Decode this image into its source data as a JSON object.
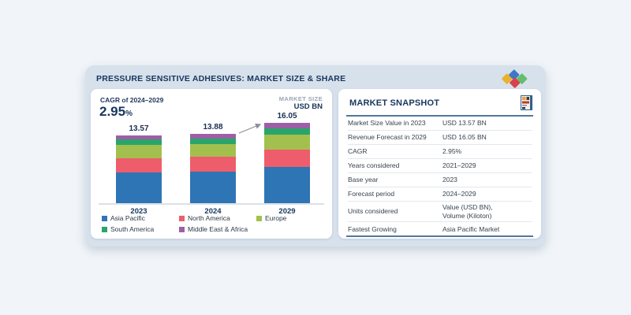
{
  "page": {
    "title": "PRESSURE SENSITIVE ADHESIVES: MARKET SIZE & SHARE"
  },
  "logo": {
    "name": "brand-logo-diamonds",
    "colors": {
      "yellow": "#eab12c",
      "blue": "#3b79c4",
      "red": "#d8414f",
      "green": "#66bd6d"
    }
  },
  "chart_panel": {
    "cagr_label": "CAGR of 2024–2029",
    "cagr_value": "2.95",
    "cagr_unit": "%",
    "market_size_label": "MARKET SIZE",
    "unit_label": "USD BN"
  },
  "chart_data": {
    "type": "bar",
    "stacked": true,
    "title": "PRESSURE SENSITIVE ADHESIVES: MARKET SIZE & SHARE",
    "ylabel": "USD BN",
    "categories": [
      "2023",
      "2024",
      "2029"
    ],
    "totals": [
      13.57,
      13.88,
      16.05
    ],
    "series": [
      {
        "name": "Asia Pacific",
        "color": "#2e75b6",
        "values": [
          6.11,
          6.25,
          7.22
        ]
      },
      {
        "name": "North America",
        "color": "#ee5d6c",
        "values": [
          2.92,
          2.98,
          3.45
        ]
      },
      {
        "name": "Europe",
        "color": "#a3c04e",
        "values": [
          2.58,
          2.64,
          3.05
        ]
      },
      {
        "name": "South America",
        "color": "#2aa56a",
        "values": [
          1.09,
          1.11,
          1.29
        ]
      },
      {
        "name": "Middle East & Africa",
        "color": "#9d60a6",
        "values": [
          0.87,
          0.9,
          1.04
        ]
      }
    ],
    "value_labels": [
      "13.57",
      "13.88",
      "16.05"
    ],
    "annotations": [
      "growth arrow from 2024 bar to 2029 bar"
    ],
    "y_axis_visible": false,
    "grid": false,
    "legend_position": "bottom"
  },
  "snapshot": {
    "title": "MARKET SNAPSHOT",
    "icon": "report-document-icon",
    "rows": [
      {
        "label": "Market Size Value in 2023",
        "value": "USD 13.57 BN"
      },
      {
        "label": "Revenue Forecast in 2029",
        "value": "USD 16.05 BN"
      },
      {
        "label": "CAGR",
        "value": "2.95%"
      },
      {
        "label": "Years considered",
        "value": "2021–2029"
      },
      {
        "label": "Base year",
        "value": "2023"
      },
      {
        "label": "Forecast period",
        "value": "2024–2029"
      },
      {
        "label": "Units considered",
        "value": "Value (USD BN),\nVolume (Kiloton)"
      },
      {
        "label": "Fastest Growing",
        "value": "Asia Pacific Market"
      }
    ]
  },
  "colors": {
    "page_bg": "#f1f5f9",
    "card_bg": "#d7e1ec",
    "panel_bg": "#ffffff",
    "navy": "#17365d",
    "muted_gray": "#9aa5b1",
    "table_text": "#36434f",
    "accent_rule": "#50789b",
    "axis_line": "#dce0e5",
    "arrow": "#8a9099"
  }
}
